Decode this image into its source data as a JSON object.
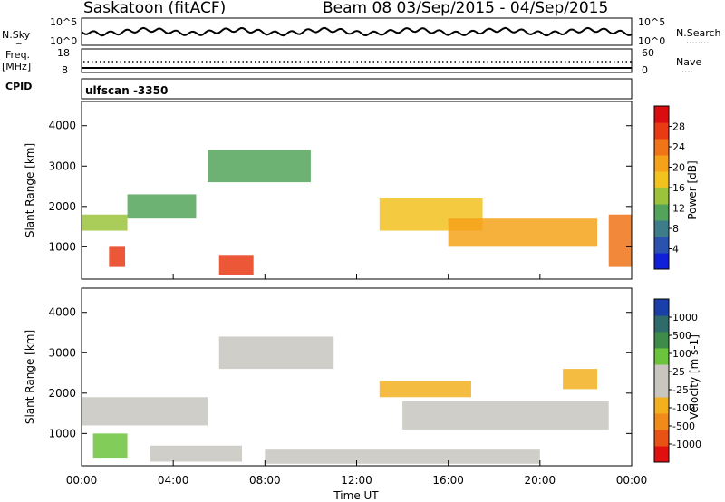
{
  "header": {
    "station": "Saskatoon (fitACF)",
    "beam_info": "Beam 08  03/Sep/2015 - 04/Sep/2015",
    "scan_label": "ulfscan -3350"
  },
  "status_panels": {
    "nsky_label_1": "N.Sky",
    "nsky_label_2": "_",
    "nsearch_label": "N.Search",
    "nsearch_dots": "........",
    "noise_ticks": [
      "10^5",
      "10^0"
    ],
    "freq_label_1": "Freq.",
    "freq_label_2": "[MHz]",
    "freq_ticks": [
      "18",
      "8"
    ],
    "nave_label": "Nave",
    "nave_dots": "....",
    "nave_ticks": [
      "60",
      "0"
    ],
    "cpid_label": "CPID"
  },
  "colors": {
    "power_scale": [
      "#1020d8",
      "#2c52b0",
      "#3e7c8a",
      "#54a35a",
      "#9bc43c",
      "#f2c21e",
      "#f5a21a",
      "#f07418",
      "#e83a14",
      "#d90c10"
    ],
    "velocity_scale": [
      "#1b3fa8",
      "#2f6b6a",
      "#3f8c4a",
      "#6cc43c",
      "#c8c6be",
      "#c8c6be",
      "#f2b01e",
      "#f08a18",
      "#e85214",
      "#e01010"
    ]
  },
  "chart_data": [
    {
      "type": "heatmap",
      "name": "power",
      "ylabel": "Slant Range [km]",
      "xlabel": "",
      "ylim": [
        200,
        4600
      ],
      "yticks": [
        "1000",
        "2000",
        "3000",
        "4000"
      ],
      "x_range_hours": [
        0,
        24
      ],
      "xticks": [],
      "colorbar": {
        "label": "Power [dB]",
        "ticks": [
          "4",
          "8",
          "12",
          "16",
          "20",
          "24",
          "28"
        ],
        "range": [
          0,
          32
        ]
      },
      "regions": [
        {
          "x": [
            0.0,
            2.0
          ],
          "y": [
            1400,
            1800
          ],
          "value": 14
        },
        {
          "x": [
            2.0,
            5.0
          ],
          "y": [
            1700,
            2300
          ],
          "value": 12
        },
        {
          "x": [
            1.2,
            1.9
          ],
          "y": [
            500,
            1000
          ],
          "value": 26
        },
        {
          "x": [
            6.0,
            7.5
          ],
          "y": [
            300,
            800
          ],
          "value": 28
        },
        {
          "x": [
            5.5,
            10.0
          ],
          "y": [
            2600,
            3400
          ],
          "value": 10
        },
        {
          "x": [
            13.0,
            17.5
          ],
          "y": [
            1400,
            2200
          ],
          "value": 18
        },
        {
          "x": [
            16.0,
            22.5
          ],
          "y": [
            1000,
            1700
          ],
          "value": 22
        },
        {
          "x": [
            23.0,
            24.0
          ],
          "y": [
            500,
            1800
          ],
          "value": 24
        }
      ]
    },
    {
      "type": "heatmap",
      "name": "velocity",
      "ylabel": "Slant Range [km]",
      "xlabel": "Time UT",
      "ylim": [
        200,
        4600
      ],
      "yticks": [
        "1000",
        "2000",
        "3000",
        "4000"
      ],
      "x_range_hours": [
        0,
        24
      ],
      "xticks": [
        "00:00",
        "04:00",
        "08:00",
        "12:00",
        "16:00",
        "20:00",
        "00:00"
      ],
      "colorbar": {
        "label": "Velocity [m s-1]",
        "ticks": [
          "1000",
          "500",
          "100",
          "25",
          "-25",
          "-100",
          "-500",
          "-1000"
        ],
        "range": [
          -1200,
          1200
        ]
      },
      "regions": [
        {
          "x": [
            0.0,
            5.5
          ],
          "y": [
            1200,
            1900
          ],
          "value": 0
        },
        {
          "x": [
            6.0,
            11.0
          ],
          "y": [
            2600,
            3400
          ],
          "value": 0
        },
        {
          "x": [
            0.5,
            2.0
          ],
          "y": [
            400,
            1000
          ],
          "value": 300
        },
        {
          "x": [
            3.0,
            7.0
          ],
          "y": [
            300,
            700
          ],
          "value": 150
        },
        {
          "x": [
            13.0,
            17.0
          ],
          "y": [
            1900,
            2300
          ],
          "value": -400
        },
        {
          "x": [
            21.0,
            22.5
          ],
          "y": [
            2100,
            2600
          ],
          "value": -300
        },
        {
          "x": [
            14.0,
            23.0
          ],
          "y": [
            1100,
            1800
          ],
          "value": 0
        },
        {
          "x": [
            8.0,
            20.0
          ],
          "y": [
            250,
            600
          ],
          "value": -80
        }
      ]
    }
  ]
}
